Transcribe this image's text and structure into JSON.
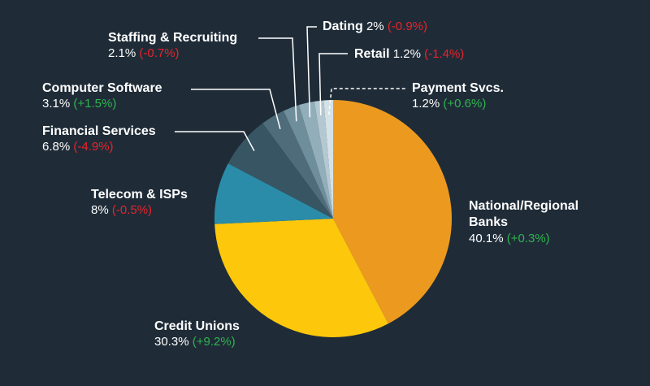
{
  "chart_data": {
    "type": "pie",
    "slices": [
      {
        "name": "National/Regional Banks",
        "value": 40.1,
        "change": "(+0.3%)",
        "value_text": "40.1%",
        "color": "#ec9a1f"
      },
      {
        "name": "Credit Unions",
        "value": 30.3,
        "change": "(+9.2%)",
        "value_text": "30.3%",
        "color": "#fdc70c"
      },
      {
        "name": "Telecom & ISPs",
        "value": 8.0,
        "change": "(-0.5%)",
        "value_text": "8%",
        "color": "#2a8ca8"
      },
      {
        "name": "Financial Services",
        "value": 6.8,
        "change": "(-4.9%)",
        "value_text": "6.8%",
        "color": "#385563"
      },
      {
        "name": "Computer Software",
        "value": 3.1,
        "change": "(+1.5%)",
        "value_text": "3.1%",
        "color": "#4f6c7b"
      },
      {
        "name": "Staffing & Recruiting",
        "value": 2.1,
        "change": "(-0.7%)",
        "value_text": "2.1%",
        "color": "#6f8e9c"
      },
      {
        "name": "Dating",
        "value": 2.0,
        "change": "(-0.9%)",
        "value_text": "2%",
        "color": "#93aebb"
      },
      {
        "name": "Retail",
        "value": 1.2,
        "change": "(-1.4%)",
        "value_text": "1.2%",
        "color": "#b4c8d2"
      },
      {
        "name": "Payment Svcs.",
        "value": 1.2,
        "change": "(+0.6%)",
        "value_text": "1.2%",
        "color": "#d4e1e7"
      }
    ],
    "positive_color": "#2fb34e",
    "negative_color": "#e8232a"
  }
}
